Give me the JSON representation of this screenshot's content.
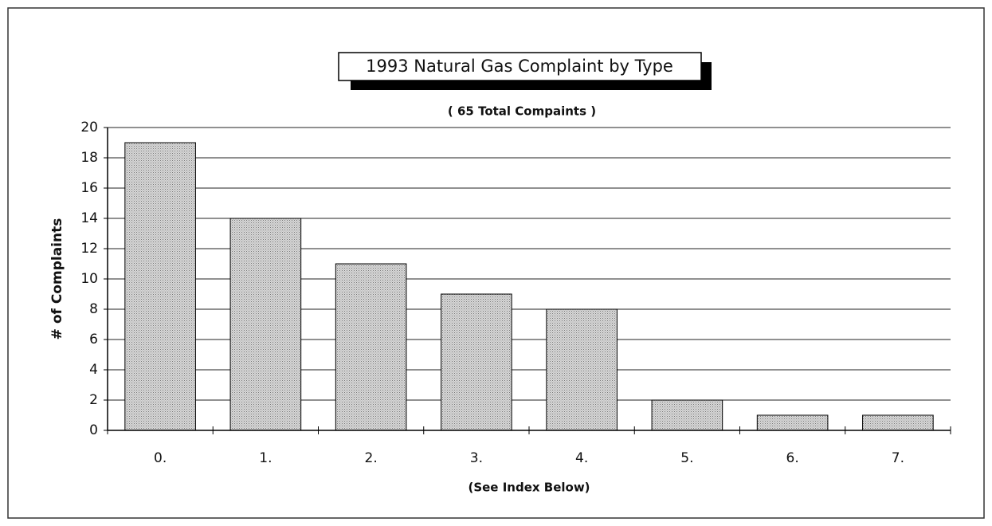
{
  "chart_data": {
    "type": "bar",
    "title": "1993 Natural Gas Complaint by Type",
    "subtitle": "( 65 Total Compaints )",
    "y_label": "# of Complaints",
    "x_label": "(See Index Below)",
    "categories": [
      "0.",
      "1.",
      "2.",
      "3.",
      "4.",
      "5.",
      "6.",
      "7."
    ],
    "values": [
      19,
      14,
      11,
      9,
      8,
      2,
      1,
      1
    ],
    "color": "#c4c4c4",
    "ylim": [
      0,
      20
    ],
    "yticks": [
      0,
      2,
      4,
      6,
      8,
      10,
      12,
      14,
      16,
      18,
      20
    ],
    "grid": true
  }
}
